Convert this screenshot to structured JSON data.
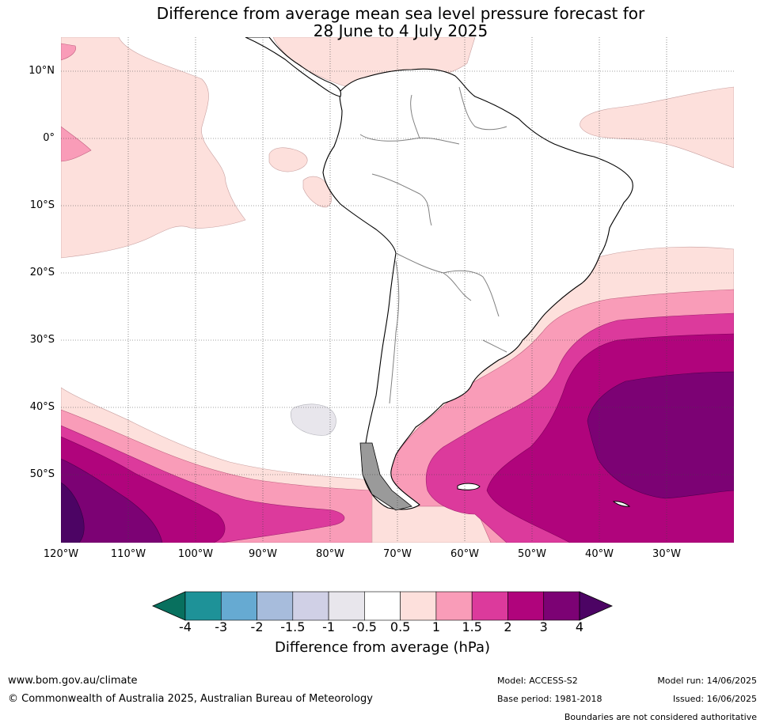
{
  "title_line1": "Difference from average mean sea level pressure forecast for",
  "title_line2": "28 June to 4 July 2025",
  "lat_labels": [
    "10°N",
    "0°",
    "10°S",
    "20°S",
    "30°S",
    "40°S",
    "50°S"
  ],
  "lon_labels": [
    "120°W",
    "110°W",
    "100°W",
    "90°W",
    "80°W",
    "70°W",
    "60°W",
    "50°W",
    "40°W",
    "30°W"
  ],
  "colorbar": {
    "title": "Difference from average (hPa)",
    "tick_labels": [
      "-4",
      "-3",
      "-2",
      "-1.5",
      "-1",
      "-0.5",
      "0.5",
      "1",
      "1.5",
      "2",
      "3",
      "4"
    ],
    "colors": [
      "#1e9298",
      "#66aad2",
      "#a7bcdc",
      "#d0d0e6",
      "#e8e6ec",
      "#ffffff",
      "#fde0dc",
      "#f99cb8",
      "#dc3a9c",
      "#b0047c",
      "#7c0274"
    ],
    "under_color": "#08705e",
    "over_color": "#4c0464"
  },
  "footer": {
    "website": "www.bom.gov.au/climate",
    "copyright": "© Commonwealth of Australia 2025, Australian Bureau of Meteorology",
    "model": "Model: ACCESS-S2",
    "base_period": "Base period: 1981-2018",
    "model_run": "Model run: 14/06/2025",
    "issued": "Issued: 16/06/2025",
    "disclaimer": "Boundaries are not considered authoritative"
  }
}
